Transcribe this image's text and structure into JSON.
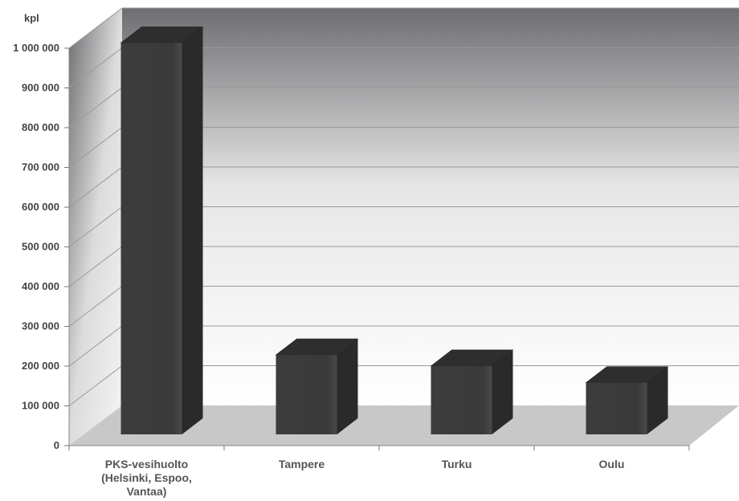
{
  "chart_data": {
    "type": "bar",
    "ylabel": "kpl",
    "categories": [
      [
        "PKS-vesihuolto",
        "(Helsinki, Espoo,",
        "Vantaa)"
      ],
      [
        "Tampere"
      ],
      [
        "Turku"
      ],
      [
        "Oulu"
      ]
    ],
    "values": [
      985000,
      200000,
      172000,
      130000
    ],
    "ylim": [
      0,
      1000000
    ],
    "yticks": [
      0,
      100000,
      200000,
      300000,
      400000,
      500000,
      600000,
      700000,
      800000,
      900000,
      1000000
    ],
    "ytick_labels": [
      "0",
      "100 000",
      "200 000",
      "300 000",
      "400 000",
      "500 000",
      "600 000",
      "700 000",
      "800 000",
      "900 000",
      "1 000 000"
    ],
    "grid": true,
    "legend": "none",
    "colors": {
      "bar_front": "#3a3a3a",
      "bar_side": "#2a2a2a",
      "bar_top": "#2e2e2e",
      "floor": "#c8c8c8",
      "wall_top": "#6c6c70",
      "wall_bottom": "#ffffff"
    }
  }
}
